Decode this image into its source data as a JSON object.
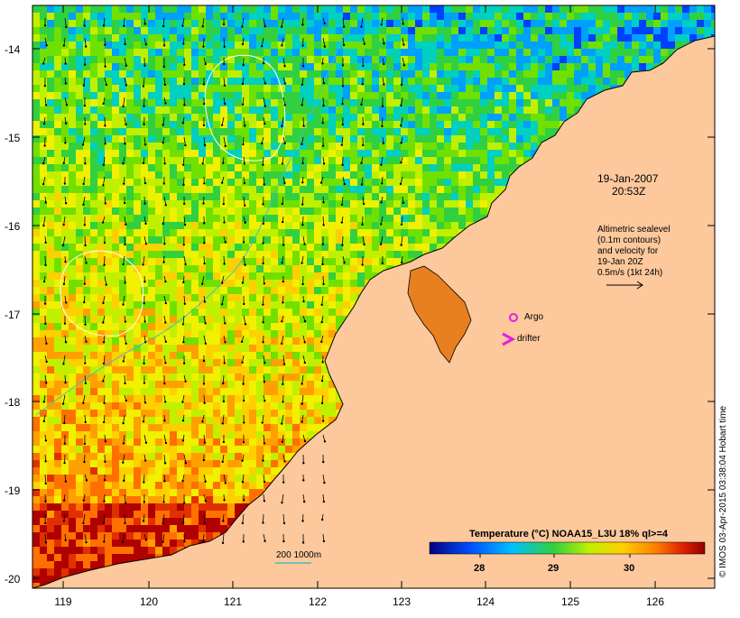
{
  "map": {
    "timestamp_date": "19-Jan-2007",
    "timestamp_time": "20:53Z",
    "altimetry_note": [
      "Altimetric sealevel",
      "(0.1m contours)",
      "and velocity for",
      "19-Jan 20Z",
      "0.5m/s (1kt 24h)"
    ],
    "argo_label": "Argo",
    "drifter_label": "drifter",
    "bathymetry_label": "200  1000m",
    "colorbar_title": "Temperature (°C) NOAA15_L3U 18% ql>=4",
    "colorbar_ticks": [
      "28",
      "29",
      "30"
    ],
    "credit": "© IMOS 03-Apr-2015 03:38:04 Hobart time",
    "lat_ticks": [
      "-14",
      "-15",
      "-16",
      "-17",
      "-18",
      "-19",
      "-20"
    ],
    "lon_ticks": [
      "119",
      "120",
      "121",
      "122",
      "123",
      "124",
      "125",
      "126"
    ],
    "colors": {
      "land": "#fcc89c",
      "contour": "#ffffff",
      "argo": "#e020e0",
      "bathymetry": "#40c0c0"
    }
  }
}
